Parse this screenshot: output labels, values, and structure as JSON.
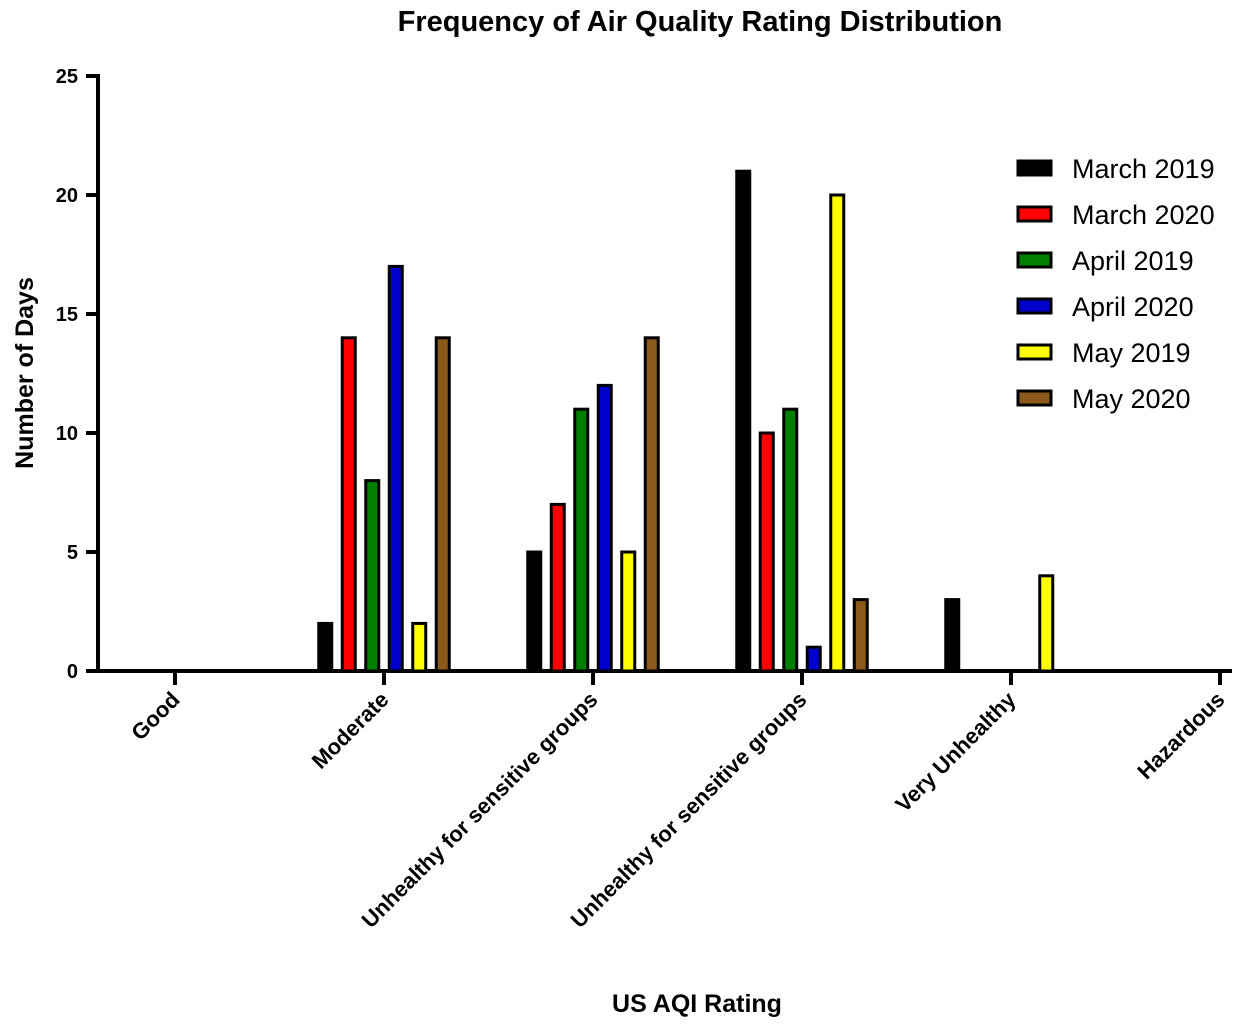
{
  "chart_data": {
    "type": "bar",
    "title": "Frequency of Air Quality Rating Distribution",
    "xlabel": "US AQI Rating",
    "ylabel": "Number of Days",
    "ylim": [
      0,
      25
    ],
    "yticks": [
      "0",
      "5",
      "10",
      "15",
      "20",
      "25"
    ],
    "grid": false,
    "legend_position": "top-right",
    "categories": [
      "Good",
      "Moderate",
      "Unhealthy for sensitive groups",
      "Unhealthy for sensitive groups",
      "Very Unhealthy",
      "Hazardous"
    ],
    "series": [
      {
        "name": "March 2019",
        "color": "#000000",
        "values": [
          0,
          2,
          5,
          21,
          3,
          0
        ]
      },
      {
        "name": "March 2020",
        "color": "#ff0000",
        "values": [
          0,
          14,
          7,
          10,
          0,
          0
        ]
      },
      {
        "name": "April 2019",
        "color": "#007f00",
        "values": [
          0,
          8,
          11,
          11,
          0,
          0
        ]
      },
      {
        "name": "April 2020",
        "color": "#0000cc",
        "values": [
          0,
          17,
          12,
          1,
          0,
          0
        ]
      },
      {
        "name": "May 2019",
        "color": "#ffff00",
        "values": [
          0,
          2,
          5,
          20,
          4,
          0
        ]
      },
      {
        "name": "May 2020",
        "color": "#8b5a1a",
        "values": [
          0,
          14,
          14,
          3,
          0,
          0
        ]
      }
    ]
  }
}
